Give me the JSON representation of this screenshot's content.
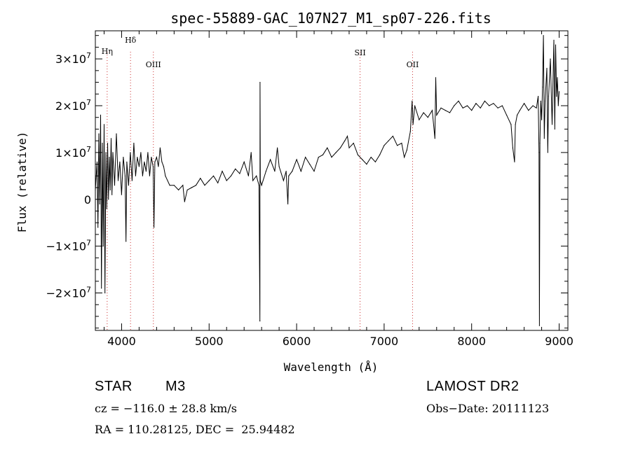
{
  "chart_data": {
    "type": "line",
    "title": "spec-55889-GAC_107N27_M1_sp07-226.fits",
    "xlabel": "Wavelength (Å)",
    "ylabel": "Flux (relative)",
    "xlim": [
      3700,
      9100
    ],
    "ylim": [
      -28000000,
      36000000
    ],
    "x_ticks": [
      4000,
      5000,
      6000,
      7000,
      8000,
      9000
    ],
    "x_tick_labels": [
      "4000",
      "5000",
      "6000",
      "7000",
      "8000",
      "9000"
    ],
    "y_ticks": [
      -20000000,
      -10000000,
      0,
      10000000,
      20000000,
      30000000
    ],
    "y_tick_mantissa": [
      "−2×10",
      "−1×10",
      "0",
      "1×10",
      "2×10",
      "3×10"
    ],
    "y_tick_exponent": [
      "7",
      "7",
      "",
      "7",
      "7",
      "7"
    ],
    "grid": false,
    "line_color": "#000000",
    "marker_color": "#cc3333",
    "emission_lines": [
      {
        "label": "Hη",
        "x": 3835
      },
      {
        "label": "Hδ",
        "x": 4102
      },
      {
        "label": "OIII",
        "x": 4363
      },
      {
        "label": "SII",
        "x": 6725
      },
      {
        "label": "OII",
        "x": 7325
      }
    ],
    "series": [
      {
        "points": [
          [
            3700,
            2000000
          ],
          [
            3720,
            8000000
          ],
          [
            3730,
            -6000000
          ],
          [
            3740,
            14000000
          ],
          [
            3750,
            -1000000
          ],
          [
            3760,
            18000000
          ],
          [
            3770,
            -19000000
          ],
          [
            3780,
            12000000
          ],
          [
            3790,
            -10000000
          ],
          [
            3800,
            16000000
          ],
          [
            3810,
            -20000000
          ],
          [
            3820,
            10000000
          ],
          [
            3830,
            -2000000
          ],
          [
            3840,
            12000000
          ],
          [
            3850,
            0
          ],
          [
            3860,
            9000000
          ],
          [
            3870,
            2000000
          ],
          [
            3880,
            13000000
          ],
          [
            3890,
            1000000
          ],
          [
            3900,
            10000000
          ],
          [
            3920,
            3000000
          ],
          [
            3940,
            14000000
          ],
          [
            3960,
            4000000
          ],
          [
            3980,
            8000000
          ],
          [
            4000,
            1000000
          ],
          [
            4020,
            9000000
          ],
          [
            4040,
            5000000
          ],
          [
            4050,
            -9000000
          ],
          [
            4060,
            8000000
          ],
          [
            4080,
            3000000
          ],
          [
            4100,
            10000000
          ],
          [
            4120,
            4000000
          ],
          [
            4140,
            12000000
          ],
          [
            4160,
            5000000
          ],
          [
            4180,
            9000000
          ],
          [
            4200,
            7000000
          ],
          [
            4220,
            10000000
          ],
          [
            4240,
            5000000
          ],
          [
            4260,
            8000000
          ],
          [
            4280,
            6000000
          ],
          [
            4300,
            10000000
          ],
          [
            4320,
            5000000
          ],
          [
            4340,
            9000000
          ],
          [
            4360,
            7000000
          ],
          [
            4370,
            -6000000
          ],
          [
            4380,
            8000000
          ],
          [
            4400,
            9000000
          ],
          [
            4420,
            7000000
          ],
          [
            4440,
            11000000
          ],
          [
            4460,
            8000000
          ],
          [
            4480,
            7000000
          ],
          [
            4500,
            5000000
          ],
          [
            4550,
            3000000
          ],
          [
            4600,
            3000000
          ],
          [
            4650,
            2000000
          ],
          [
            4700,
            3000000
          ],
          [
            4720,
            -500000
          ],
          [
            4750,
            2000000
          ],
          [
            4800,
            2500000
          ],
          [
            4850,
            3000000
          ],
          [
            4900,
            4500000
          ],
          [
            4950,
            3000000
          ],
          [
            5000,
            4000000
          ],
          [
            5050,
            5000000
          ],
          [
            5100,
            3500000
          ],
          [
            5150,
            6000000
          ],
          [
            5200,
            4000000
          ],
          [
            5250,
            5000000
          ],
          [
            5300,
            6500000
          ],
          [
            5350,
            5500000
          ],
          [
            5400,
            8000000
          ],
          [
            5450,
            5000000
          ],
          [
            5480,
            10000000
          ],
          [
            5500,
            4000000
          ],
          [
            5540,
            5000000
          ],
          [
            5570,
            3000000
          ],
          [
            5580,
            -26000000
          ],
          [
            5582,
            25000000
          ],
          [
            5585,
            4000000
          ],
          [
            5600,
            3000000
          ],
          [
            5650,
            6000000
          ],
          [
            5700,
            8500000
          ],
          [
            5750,
            6000000
          ],
          [
            5780,
            11000000
          ],
          [
            5800,
            7000000
          ],
          [
            5850,
            4000000
          ],
          [
            5880,
            6000000
          ],
          [
            5900,
            -1000000
          ],
          [
            5910,
            5000000
          ],
          [
            5950,
            6000000
          ],
          [
            6000,
            8500000
          ],
          [
            6050,
            6000000
          ],
          [
            6100,
            9000000
          ],
          [
            6150,
            7500000
          ],
          [
            6200,
            6000000
          ],
          [
            6250,
            9000000
          ],
          [
            6300,
            9500000
          ],
          [
            6350,
            11000000
          ],
          [
            6400,
            9000000
          ],
          [
            6450,
            10000000
          ],
          [
            6500,
            11000000
          ],
          [
            6550,
            12500000
          ],
          [
            6580,
            13500000
          ],
          [
            6600,
            11000000
          ],
          [
            6650,
            12000000
          ],
          [
            6700,
            9500000
          ],
          [
            6750,
            8500000
          ],
          [
            6800,
            7500000
          ],
          [
            6850,
            9000000
          ],
          [
            6900,
            8000000
          ],
          [
            6950,
            9500000
          ],
          [
            7000,
            11500000
          ],
          [
            7050,
            12500000
          ],
          [
            7100,
            13500000
          ],
          [
            7150,
            11500000
          ],
          [
            7200,
            12000000
          ],
          [
            7230,
            9000000
          ],
          [
            7260,
            10500000
          ],
          [
            7300,
            14500000
          ],
          [
            7320,
            21000000
          ],
          [
            7330,
            16000000
          ],
          [
            7350,
            20000000
          ],
          [
            7400,
            17000000
          ],
          [
            7450,
            18500000
          ],
          [
            7500,
            17500000
          ],
          [
            7550,
            19000000
          ],
          [
            7580,
            13000000
          ],
          [
            7590,
            26000000
          ],
          [
            7600,
            18000000
          ],
          [
            7650,
            19500000
          ],
          [
            7700,
            19000000
          ],
          [
            7750,
            18500000
          ],
          [
            7800,
            20000000
          ],
          [
            7850,
            21000000
          ],
          [
            7900,
            19500000
          ],
          [
            7950,
            20000000
          ],
          [
            8000,
            19000000
          ],
          [
            8050,
            20500000
          ],
          [
            8100,
            19500000
          ],
          [
            8150,
            21000000
          ],
          [
            8200,
            20000000
          ],
          [
            8250,
            20500000
          ],
          [
            8300,
            19500000
          ],
          [
            8350,
            20000000
          ],
          [
            8400,
            18000000
          ],
          [
            8450,
            16000000
          ],
          [
            8470,
            11000000
          ],
          [
            8490,
            8000000
          ],
          [
            8500,
            16000000
          ],
          [
            8520,
            18000000
          ],
          [
            8550,
            19000000
          ],
          [
            8600,
            20500000
          ],
          [
            8650,
            19000000
          ],
          [
            8700,
            20000000
          ],
          [
            8740,
            19500000
          ],
          [
            8760,
            22000000
          ],
          [
            8770,
            10000000
          ],
          [
            8775,
            -27000000
          ],
          [
            8780,
            12000000
          ],
          [
            8790,
            21000000
          ],
          [
            8800,
            17000000
          ],
          [
            8810,
            24000000
          ],
          [
            8820,
            35000000
          ],
          [
            8830,
            13000000
          ],
          [
            8840,
            21000000
          ],
          [
            8860,
            28000000
          ],
          [
            8870,
            10000000
          ],
          [
            8880,
            22000000
          ],
          [
            8900,
            30000000
          ],
          [
            8920,
            16000000
          ],
          [
            8940,
            34000000
          ],
          [
            8950,
            15000000
          ],
          [
            8960,
            33000000
          ],
          [
            8970,
            22000000
          ],
          [
            8980,
            26000000
          ],
          [
            8990,
            20000000
          ],
          [
            9000,
            23000000
          ]
        ]
      }
    ]
  },
  "info": {
    "object_class": "STAR",
    "subclass": "M3",
    "survey": "LAMOST DR2",
    "cz": "cz = −116.0 ± 28.8 km/s",
    "obs_date": "Obs−Date: 20111123",
    "radec": "RA = 110.28125, DEC =  25.94482"
  }
}
